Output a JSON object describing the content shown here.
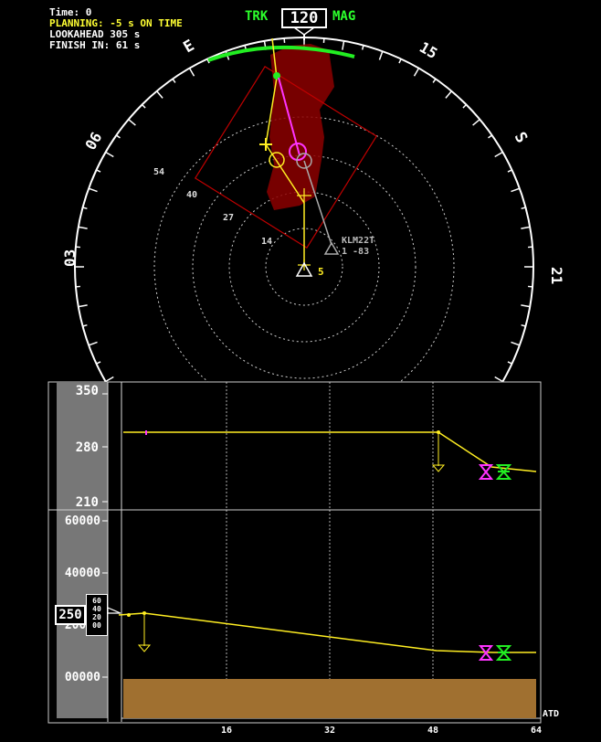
{
  "status": {
    "time_line": "Time: 0",
    "planning_line": "PLANNING: -5 s ON TIME",
    "lookahead_line": "LOOKAHEAD 305 s",
    "finish_line": "FINISH IN: 61 s"
  },
  "heading": {
    "trk_label": "TRK",
    "value": "120",
    "mag_label": "MAG"
  },
  "compass": {
    "labels": [
      "E",
      "15",
      "06",
      "S",
      "03",
      "21"
    ]
  },
  "range_rings": [
    "54",
    "40",
    "27",
    "14"
  ],
  "traffic": {
    "callsign": "KLM22T",
    "info": "1 -83"
  },
  "ownship": {
    "label": "5"
  },
  "speed_panel": {
    "scale": [
      "350",
      "280",
      "210"
    ]
  },
  "altitude_panel": {
    "scale": [
      "60000",
      "40000",
      "20000",
      "00000"
    ],
    "selected": "250",
    "drum": [
      "60",
      "40",
      "20",
      "00"
    ]
  },
  "time_axis": {
    "ticks": [
      "16",
      "32",
      "48",
      "64"
    ],
    "label": "ATD"
  },
  "colors": {
    "compass": "#ffffff",
    "arc": "#22ee22",
    "route": "#ffee22",
    "active_leg": "#ff33ff",
    "traffic": "#aaaaaa",
    "weather": "#8c0000",
    "terrain": "#a07030"
  }
}
